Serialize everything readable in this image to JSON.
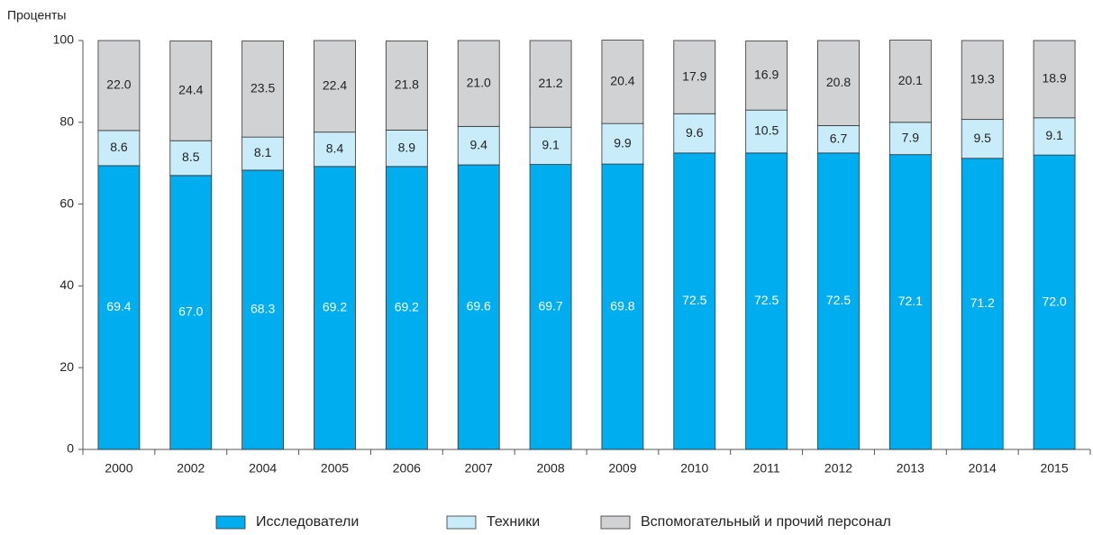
{
  "chart_data": {
    "type": "stacked-bar",
    "y_label": "Проценты",
    "categories": [
      "2000",
      "2002",
      "2004",
      "2005",
      "2006",
      "2007",
      "2008",
      "2009",
      "2010",
      "2011",
      "2012",
      "2013",
      "2014",
      "2015"
    ],
    "series": [
      {
        "name": "Исследователи",
        "color": "#00aeef",
        "label_color": "#ffffff",
        "values": [
          69.4,
          67.0,
          68.3,
          69.2,
          69.2,
          69.6,
          69.7,
          69.8,
          72.5,
          72.5,
          72.5,
          72.1,
          71.2,
          72.0
        ],
        "value_labels": [
          "69.4",
          "67.0",
          "68.3",
          "69.2",
          "69.2",
          "69.6",
          "69.7",
          "69.8",
          "72.5",
          "72.5",
          "72.5",
          "72.1",
          "71.2",
          "72.0"
        ]
      },
      {
        "name": "Техники",
        "color": "#c8ecfa",
        "label_color": "#222222",
        "values": [
          8.6,
          8.5,
          8.1,
          8.4,
          8.9,
          9.4,
          9.1,
          9.9,
          9.6,
          10.5,
          6.7,
          7.9,
          9.5,
          9.1
        ],
        "value_labels": [
          "8.6",
          "8.5",
          "8.1",
          "8.4",
          "8.9",
          "9.4",
          "9.1",
          "9.9",
          "9.6",
          "10.5",
          "6.7",
          "7.9",
          "9.5",
          "9.1"
        ]
      },
      {
        "name": "Вспомогательный и прочий персонал",
        "color": "#d1d2d4",
        "label_color": "#222222",
        "values": [
          22.0,
          24.4,
          23.5,
          22.4,
          21.8,
          21.0,
          21.2,
          20.4,
          17.9,
          16.9,
          20.8,
          20.1,
          19.3,
          18.9
        ],
        "value_labels": [
          "22.0",
          "24.4",
          "23.5",
          "22.4",
          "21.8",
          "21.0",
          "21.2",
          "20.4",
          "17.9",
          "16.9",
          "20.8",
          "20.1",
          "19.3",
          "18.9"
        ]
      }
    ],
    "ylim": [
      0,
      100
    ],
    "yticks": [
      0,
      20,
      40,
      60,
      80,
      100
    ],
    "grid": false,
    "legend": "bottom"
  }
}
